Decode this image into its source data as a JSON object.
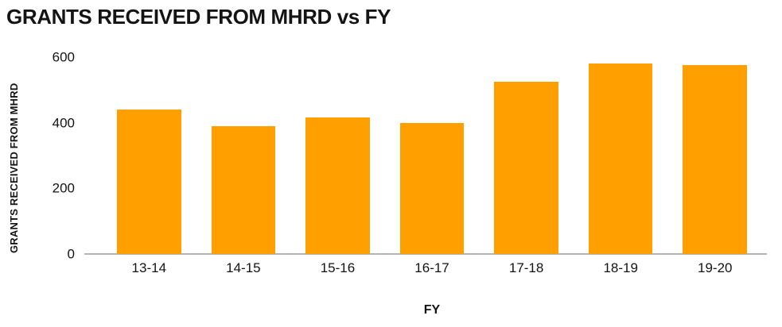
{
  "chart_data": {
    "type": "bar",
    "title": "GRANTS RECEIVED FROM MHRD vs FY",
    "categories": [
      "13-14",
      "14-15",
      "15-16",
      "16-17",
      "17-18",
      "18-19",
      "19-20"
    ],
    "values": [
      440,
      390,
      415,
      400,
      525,
      580,
      575
    ],
    "xlabel": "FY",
    "ylabel": "GRANTS RECEIVED FROM MHRD",
    "ylim": [
      0,
      600
    ],
    "yticks": [
      0,
      200,
      400,
      600
    ],
    "bar_color": "#FFA000",
    "axis_line_color": "#b5b5b5",
    "grid": false,
    "legend": "none"
  }
}
